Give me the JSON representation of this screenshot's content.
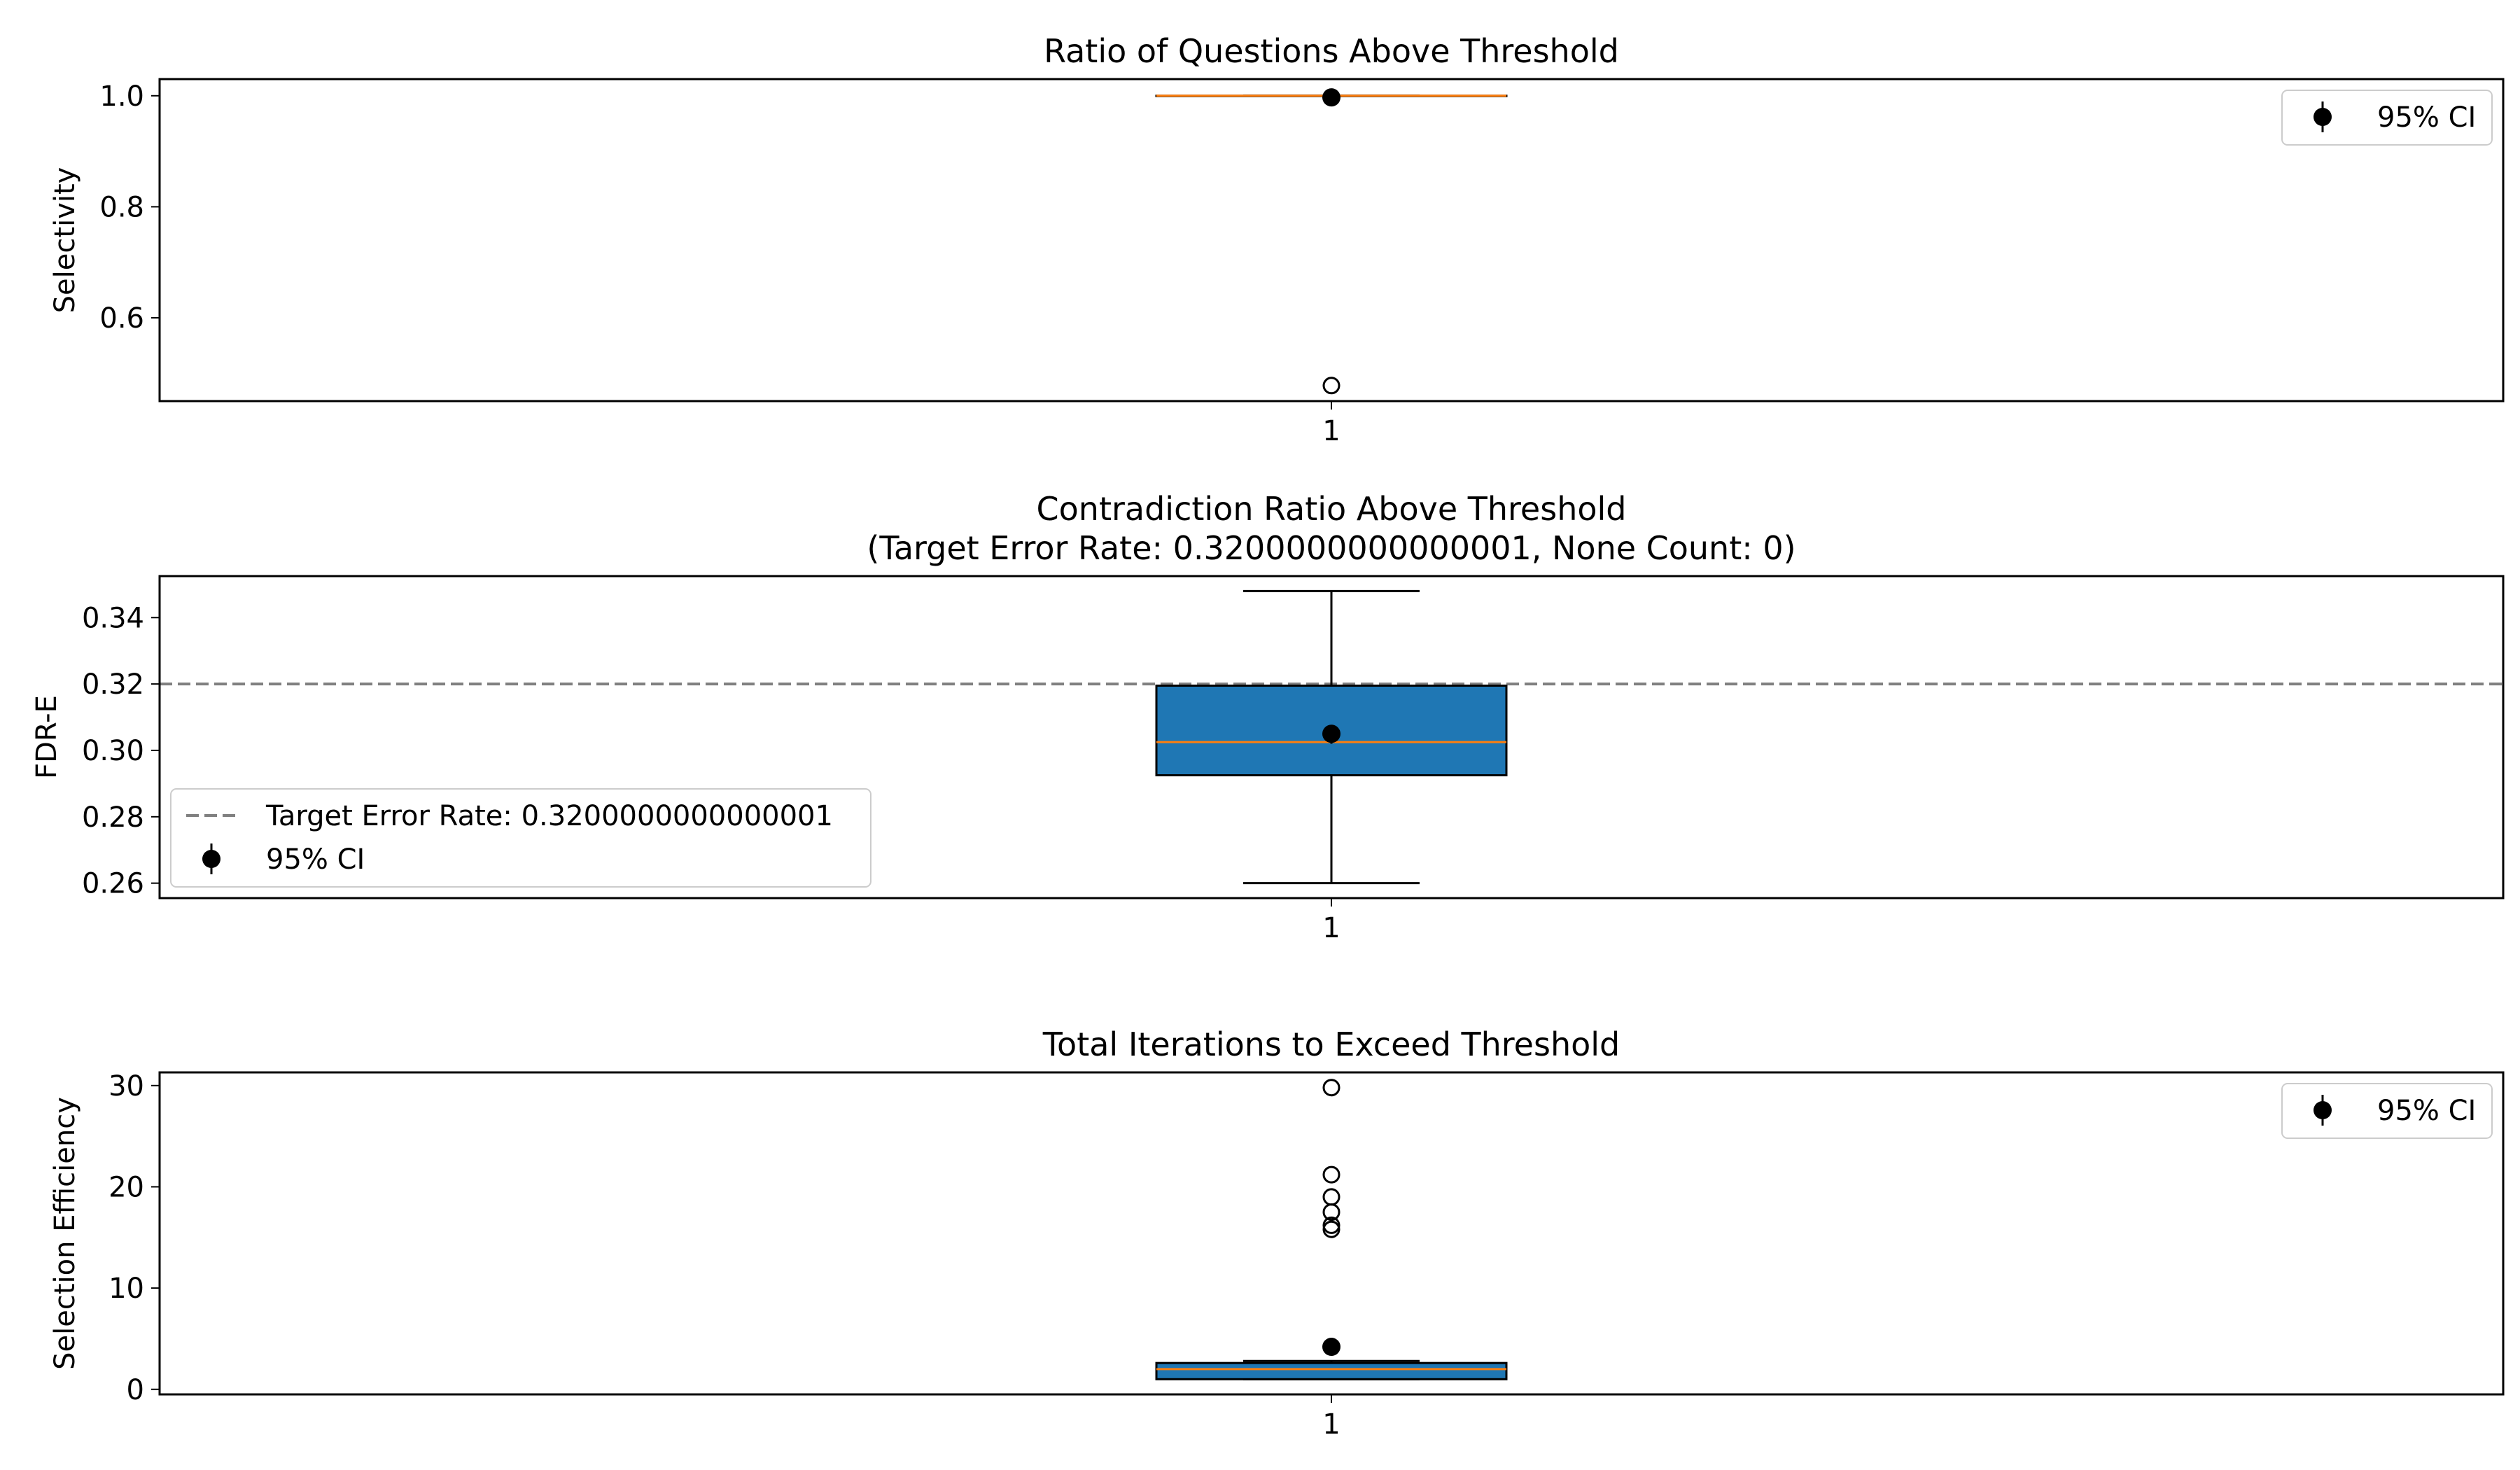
{
  "colors": {
    "box_fill": "#1f77b4",
    "median": "#ff7f0e",
    "target_line": "#808080",
    "ci_marker": "#000000"
  },
  "chart_data": [
    {
      "type": "box",
      "title": "Ratio of Questions Above Threshold",
      "ylabel": "Selectivity",
      "xticks": [
        "1"
      ],
      "ylim": [
        0.45,
        1.03
      ],
      "yticks": [
        0.6,
        0.8,
        1.0
      ],
      "yticklabels": [
        "0.6",
        "0.8",
        "1.0"
      ],
      "grid": false,
      "box": {
        "q1": 1.0,
        "median": 1.0,
        "q3": 1.0,
        "whisker_low": 1.0,
        "whisker_high": 1.0
      },
      "outliers": [
        0.478
      ],
      "ci": {
        "mean": 0.997,
        "low": 0.994,
        "high": 1.0
      },
      "legend": {
        "location": "upper right",
        "entries": [
          "95% CI"
        ]
      }
    },
    {
      "type": "box",
      "title": "Contradiction Ratio Above Threshold",
      "subtitle": "(Target Error Rate: 0.3200000000000001, None Count: 0)",
      "ylabel": "FDR-E",
      "xticks": [
        "1"
      ],
      "ylim": [
        0.2555,
        0.3525
      ],
      "yticks": [
        0.26,
        0.28,
        0.3,
        0.32,
        0.34
      ],
      "yticklabels": [
        "0.26",
        "0.28",
        "0.30",
        "0.32",
        "0.34"
      ],
      "grid": false,
      "box": {
        "q1": 0.2925,
        "median": 0.3025,
        "q3": 0.3195,
        "whisker_low": 0.26,
        "whisker_high": 0.348
      },
      "outliers": [],
      "ci": {
        "mean": 0.305,
        "low": 0.302,
        "high": 0.3075
      },
      "target_line": {
        "value": 0.32,
        "label": "Target Error Rate: 0.3200000000000001"
      },
      "legend": {
        "location": "lower left",
        "entries": [
          "Target Error Rate: 0.3200000000000001",
          "95% CI"
        ]
      }
    },
    {
      "type": "box",
      "title": "Total Iterations to Exceed Threshold",
      "ylabel": "Selection Efficiency",
      "xticks": [
        "1"
      ],
      "ylim": [
        -0.5,
        31.3
      ],
      "yticks": [
        0,
        10,
        20,
        30
      ],
      "yticklabels": [
        "0",
        "10",
        "20",
        "30"
      ],
      "grid": false,
      "box": {
        "q1": 1.0,
        "median": 2.0,
        "q3": 2.6,
        "whisker_low": 1.0,
        "whisker_high": 2.8
      },
      "outliers": [
        29.8,
        21.2,
        19.0,
        17.5,
        16.2,
        15.8
      ],
      "ci": {
        "mean": 4.2,
        "low": 3.6,
        "high": 4.8
      },
      "legend": {
        "location": "upper right",
        "entries": [
          "95% CI"
        ]
      }
    }
  ]
}
